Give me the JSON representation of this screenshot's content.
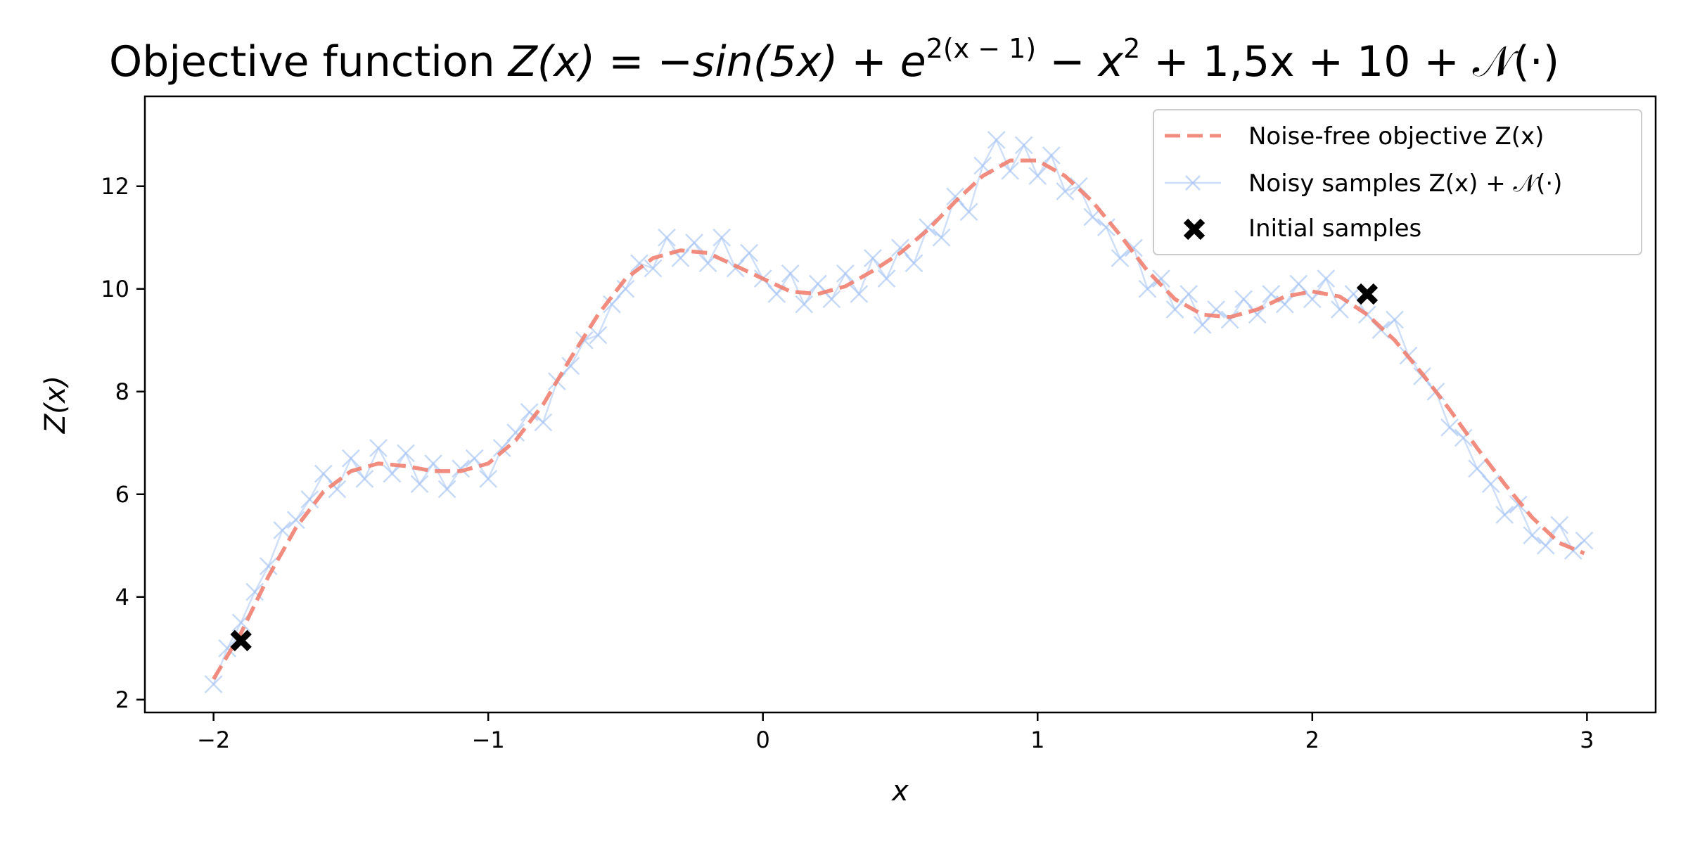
{
  "chart_data": {
    "type": "line",
    "title": "Objective function Z(x) = −sin(5x) + e^{2(x−1)} − x² + 1,5x + 10 + 𝒩(·)",
    "title_parts": {
      "prefix": "Objective function ",
      "lhs": "Z(x) = −sin(5x) + e",
      "exp": "2(x − 1)",
      "rhs": " − x",
      "sq": "2",
      "tail": " + 1,5x + 10 + 𝒩(·)"
    },
    "xlabel": "x",
    "ylabel": "Z(x)",
    "xlim": [
      -2.25,
      3.25
    ],
    "ylim": [
      1.75,
      13.75
    ],
    "xticks": [
      -2,
      -1,
      0,
      1,
      2,
      3
    ],
    "xtick_labels": [
      "−2",
      "−1",
      "0",
      "1",
      "2",
      "3"
    ],
    "yticks": [
      2,
      4,
      6,
      8,
      10,
      12
    ],
    "ytick_labels": [
      "2",
      "4",
      "6",
      "8",
      "10",
      "12"
    ],
    "grid": false,
    "legend": {
      "placement": "top-right",
      "entries": [
        {
          "label": "Noise-free objective Z(x)",
          "style": "dashed-line",
          "color": "#f08070"
        },
        {
          "label": "Noisy samples Z(x) + 𝒩(·)",
          "style": "line-x-marker",
          "color": "#a8c4f2"
        },
        {
          "label": "Initial samples",
          "style": "x-marker-filled",
          "color": "#000000"
        }
      ]
    },
    "series": [
      {
        "name": "Noise-free objective Z(x)",
        "style": "dashed",
        "color": "#f08070",
        "x": [
          -2.0,
          -1.9,
          -1.8,
          -1.7,
          -1.6,
          -1.5,
          -1.4,
          -1.3,
          -1.2,
          -1.1,
          -1.0,
          -0.9,
          -0.8,
          -0.7,
          -0.6,
          -0.5,
          -0.4,
          -0.3,
          -0.2,
          -0.1,
          0.0,
          0.1,
          0.2,
          0.3,
          0.4,
          0.5,
          0.6,
          0.7,
          0.8,
          0.9,
          1.0,
          1.1,
          1.2,
          1.3,
          1.4,
          1.5,
          1.6,
          1.7,
          1.8,
          1.9,
          2.0,
          2.1,
          2.2,
          2.3,
          2.4,
          2.5,
          2.6,
          2.7,
          2.8,
          2.9,
          2.99
        ],
        "y": [
          2.4,
          3.3,
          4.4,
          5.35,
          6.05,
          6.45,
          6.6,
          6.55,
          6.45,
          6.45,
          6.6,
          7.05,
          7.75,
          8.65,
          9.5,
          10.2,
          10.6,
          10.75,
          10.7,
          10.45,
          10.2,
          9.95,
          9.9,
          10.05,
          10.35,
          10.7,
          11.15,
          11.7,
          12.2,
          12.5,
          12.5,
          12.2,
          11.7,
          11.05,
          10.35,
          9.8,
          9.5,
          9.45,
          9.6,
          9.85,
          9.95,
          9.85,
          9.5,
          9.0,
          8.35,
          7.65,
          6.9,
          6.2,
          5.55,
          5.05,
          4.85
        ]
      },
      {
        "name": "Noisy samples Z(x) + 𝒩(·)",
        "style": "line-x-marker",
        "color": "#a8c4f2",
        "x": [
          -2.0,
          -1.95,
          -1.9,
          -1.85,
          -1.8,
          -1.75,
          -1.7,
          -1.65,
          -1.6,
          -1.55,
          -1.5,
          -1.45,
          -1.4,
          -1.35,
          -1.3,
          -1.25,
          -1.2,
          -1.15,
          -1.1,
          -1.05,
          -1.0,
          -0.95,
          -0.9,
          -0.85,
          -0.8,
          -0.75,
          -0.7,
          -0.65,
          -0.6,
          -0.55,
          -0.5,
          -0.45,
          -0.4,
          -0.35,
          -0.3,
          -0.25,
          -0.2,
          -0.15,
          -0.1,
          -0.05,
          0.0,
          0.05,
          0.1,
          0.15,
          0.2,
          0.25,
          0.3,
          0.35,
          0.4,
          0.45,
          0.5,
          0.55,
          0.6,
          0.65,
          0.7,
          0.75,
          0.8,
          0.85,
          0.9,
          0.95,
          1.0,
          1.05,
          1.1,
          1.15,
          1.2,
          1.25,
          1.3,
          1.35,
          1.4,
          1.45,
          1.5,
          1.55,
          1.6,
          1.65,
          1.7,
          1.75,
          1.8,
          1.85,
          1.9,
          1.95,
          2.0,
          2.05,
          2.1,
          2.15,
          2.2,
          2.25,
          2.3,
          2.35,
          2.4,
          2.45,
          2.5,
          2.55,
          2.6,
          2.65,
          2.7,
          2.75,
          2.8,
          2.85,
          2.9,
          2.95,
          2.99
        ],
        "y": [
          2.3,
          3.0,
          3.5,
          4.1,
          4.6,
          5.3,
          5.5,
          5.9,
          6.4,
          6.1,
          6.7,
          6.3,
          6.9,
          6.4,
          6.8,
          6.2,
          6.6,
          6.1,
          6.5,
          6.7,
          6.3,
          6.9,
          7.2,
          7.6,
          7.4,
          8.2,
          8.5,
          9.0,
          9.1,
          9.7,
          10.0,
          10.5,
          10.4,
          11.0,
          10.6,
          10.9,
          10.5,
          11.0,
          10.4,
          10.7,
          10.2,
          9.9,
          10.3,
          9.7,
          10.1,
          9.8,
          10.3,
          9.9,
          10.6,
          10.2,
          10.8,
          10.5,
          11.2,
          11.0,
          11.8,
          11.5,
          12.4,
          12.9,
          12.3,
          12.8,
          12.2,
          12.6,
          11.9,
          12.0,
          11.4,
          11.2,
          10.6,
          10.8,
          10.0,
          10.2,
          9.6,
          9.9,
          9.3,
          9.6,
          9.4,
          9.8,
          9.5,
          9.9,
          9.7,
          10.1,
          9.8,
          10.2,
          9.6,
          9.9,
          9.5,
          9.2,
          9.4,
          8.7,
          8.3,
          8.0,
          7.3,
          7.1,
          6.5,
          6.2,
          5.6,
          5.8,
          5.2,
          5.0,
          5.4,
          4.9,
          5.1
        ]
      },
      {
        "name": "Initial samples",
        "style": "x-marker-filled",
        "color": "#000000",
        "x": [
          -1.9,
          2.2
        ],
        "y": [
          3.15,
          9.9
        ]
      }
    ]
  }
}
